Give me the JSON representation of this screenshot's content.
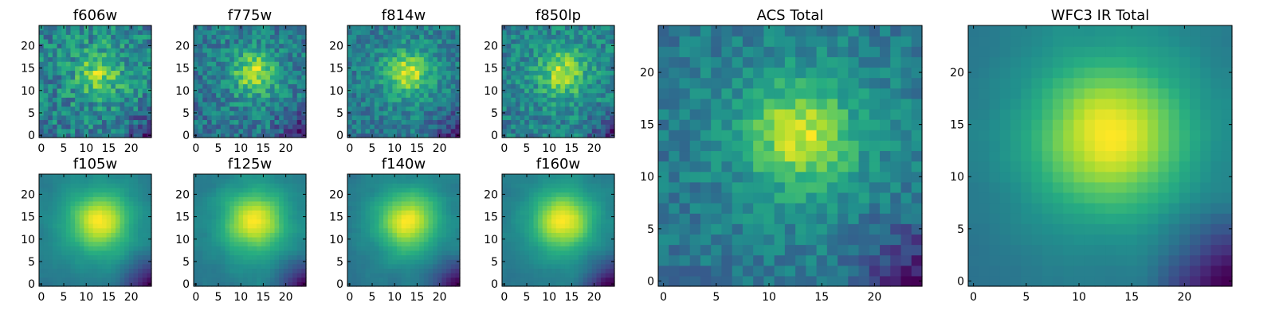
{
  "chart_data": {
    "type": "heatmap",
    "colormap": "viridis",
    "grid": false,
    "panels": [
      {
        "title": "f606w",
        "xticks": [
          "0",
          "5",
          "10",
          "15",
          "20"
        ],
        "yticks": [
          "0",
          "5",
          "10",
          "15",
          "20"
        ],
        "xlim": [
          -0.5,
          24.5
        ],
        "ylim": [
          -0.5,
          24.5
        ],
        "peak": {
          "x": 13,
          "y": 14
        },
        "noise": 0.38,
        "bright_bias": 0.55,
        "sigma": 3.2,
        "smooth": false,
        "seed": 11
      },
      {
        "title": "f775w",
        "xticks": [
          "0",
          "5",
          "10",
          "15",
          "20"
        ],
        "yticks": [
          "0",
          "5",
          "10",
          "15",
          "20"
        ],
        "xlim": [
          -0.5,
          24.5
        ],
        "ylim": [
          -0.5,
          24.5
        ],
        "peak": {
          "x": 13,
          "y": 14
        },
        "noise": 0.26,
        "bright_bias": 0.15,
        "sigma": 3.0,
        "smooth": false,
        "seed": 23
      },
      {
        "title": "f814w",
        "xticks": [
          "0",
          "5",
          "10",
          "15",
          "20"
        ],
        "yticks": [
          "0",
          "5",
          "10",
          "15",
          "20"
        ],
        "xlim": [
          -0.5,
          24.5
        ],
        "ylim": [
          -0.5,
          24.5
        ],
        "peak": {
          "x": 13,
          "y": 14
        },
        "noise": 0.22,
        "bright_bias": 0.15,
        "sigma": 3.0,
        "smooth": false,
        "seed": 37
      },
      {
        "title": "f850lp",
        "xticks": [
          "0",
          "5",
          "10",
          "15",
          "20"
        ],
        "yticks": [
          "0",
          "5",
          "10",
          "15",
          "20"
        ],
        "xlim": [
          -0.5,
          24.5
        ],
        "ylim": [
          -0.5,
          24.5
        ],
        "peak": {
          "x": 13,
          "y": 14
        },
        "noise": 0.26,
        "bright_bias": 0.15,
        "sigma": 3.0,
        "smooth": false,
        "seed": 41
      },
      {
        "title": "f105w",
        "xticks": [
          "0",
          "5",
          "10",
          "15",
          "20"
        ],
        "yticks": [
          "0",
          "5",
          "10",
          "15",
          "20"
        ],
        "xlim": [
          -0.5,
          24.5
        ],
        "ylim": [
          -0.5,
          24.5
        ],
        "peak": {
          "x": 13,
          "y": 14
        },
        "noise": 0.08,
        "bright_bias": 0.05,
        "sigma": 4.2,
        "smooth": true,
        "seed": 53
      },
      {
        "title": "f125w",
        "xticks": [
          "0",
          "5",
          "10",
          "15",
          "20"
        ],
        "yticks": [
          "0",
          "5",
          "10",
          "15",
          "20"
        ],
        "xlim": [
          -0.5,
          24.5
        ],
        "ylim": [
          -0.5,
          24.5
        ],
        "peak": {
          "x": 13,
          "y": 14
        },
        "noise": 0.1,
        "bright_bias": 0.05,
        "sigma": 4.4,
        "smooth": true,
        "seed": 61
      },
      {
        "title": "f140w",
        "xticks": [
          "0",
          "5",
          "10",
          "15",
          "20"
        ],
        "yticks": [
          "0",
          "5",
          "10",
          "15",
          "20"
        ],
        "xlim": [
          -0.5,
          24.5
        ],
        "ylim": [
          -0.5,
          24.5
        ],
        "peak": {
          "x": 13,
          "y": 14
        },
        "noise": 0.1,
        "bright_bias": 0.05,
        "sigma": 4.2,
        "smooth": true,
        "seed": 71
      },
      {
        "title": "f160w",
        "xticks": [
          "0",
          "5",
          "10",
          "15",
          "20"
        ],
        "yticks": [
          "0",
          "5",
          "10",
          "15",
          "20"
        ],
        "xlim": [
          -0.5,
          24.5
        ],
        "ylim": [
          -0.5,
          24.5
        ],
        "peak": {
          "x": 13,
          "y": 14
        },
        "noise": 0.08,
        "bright_bias": 0.05,
        "sigma": 4.2,
        "smooth": true,
        "seed": 83
      },
      {
        "title": "ACS Total",
        "xticks": [
          "0",
          "5",
          "10",
          "15",
          "20"
        ],
        "yticks": [
          "0",
          "5",
          "10",
          "15",
          "20"
        ],
        "xlim": [
          -0.5,
          24.5
        ],
        "ylim": [
          -0.5,
          24.5
        ],
        "peak": {
          "x": 13,
          "y": 14
        },
        "noise": 0.16,
        "bright_bias": 0.1,
        "sigma": 3.2,
        "smooth": false,
        "seed": 97
      },
      {
        "title": "WFC3 IR Total",
        "xticks": [
          "0",
          "5",
          "10",
          "15",
          "20"
        ],
        "yticks": [
          "0",
          "5",
          "10",
          "15",
          "20"
        ],
        "xlim": [
          -0.5,
          24.5
        ],
        "ylim": [
          -0.5,
          24.5
        ],
        "peak": {
          "x": 13,
          "y": 14
        },
        "noise": 0.04,
        "bright_bias": 0.0,
        "sigma": 4.6,
        "smooth": true,
        "seed": 101
      }
    ]
  }
}
